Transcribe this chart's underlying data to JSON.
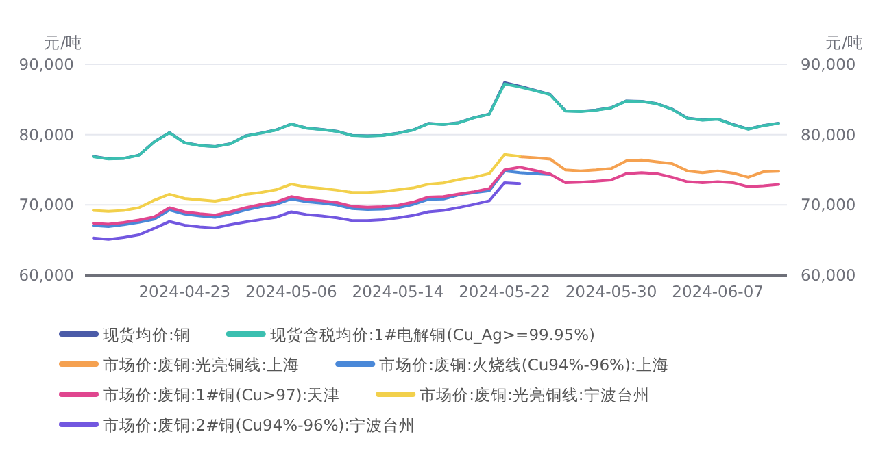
{
  "chart_data": {
    "type": "line",
    "ylabel": "元/吨",
    "y2label": "元/吨",
    "categories": [
      null,
      null,
      null,
      null,
      null,
      null,
      "2024-04-23",
      null,
      null,
      null,
      null,
      null,
      null,
      "2024-05-06",
      null,
      null,
      null,
      null,
      null,
      null,
      "2024-05-14",
      null,
      null,
      null,
      null,
      null,
      null,
      "2024-05-22",
      null,
      null,
      null,
      null,
      null,
      null,
      "2024-05-30",
      null,
      null,
      null,
      null,
      null,
      null,
      "2024-06-07",
      null,
      null,
      null,
      null
    ],
    "ylim": [
      60000,
      90000
    ],
    "yticks": [
      {
        "value": 60000,
        "label": "60,000"
      },
      {
        "value": 70000,
        "label": "70,000"
      },
      {
        "value": 80000,
        "label": "80,000"
      },
      {
        "value": 90000,
        "label": "90,000"
      }
    ],
    "y2lim": [
      60000,
      90000
    ],
    "y2ticks": [
      {
        "value": 60000,
        "label": "60,000"
      },
      {
        "value": 70000,
        "label": "70,000"
      },
      {
        "value": 80000,
        "label": "80,000"
      },
      {
        "value": 90000,
        "label": "90,000"
      }
    ],
    "grid": "y",
    "legend": "bottom",
    "series": [
      {
        "name": "现货均价:铜",
        "color": "#4b5ba8",
        "values": [
          76900,
          76550,
          76620,
          77080,
          78970,
          80300,
          78850,
          78450,
          78320,
          78710,
          79820,
          80220,
          80670,
          81520,
          80940,
          80740,
          80480,
          79890,
          79820,
          79890,
          80220,
          80670,
          81590,
          81460,
          81700,
          82410,
          82920,
          87400,
          86900,
          86300,
          85720,
          83380,
          83320,
          83500,
          83830,
          84800,
          84740,
          84420,
          83640,
          82350,
          82090,
          82220,
          81450,
          80800,
          81310,
          81630
        ]
      },
      {
        "name": "现货含税均价:1#电解铜(Cu_Ag>=99.95%)",
        "color": "#3bbfb0",
        "values": [
          76860,
          76530,
          76600,
          77060,
          78950,
          80270,
          78820,
          78430,
          78300,
          78690,
          79800,
          80200,
          80650,
          81500,
          80920,
          80720,
          80460,
          79870,
          79800,
          79870,
          80200,
          80650,
          81570,
          81440,
          81680,
          82390,
          82900,
          87220,
          86770,
          86260,
          85680,
          83350,
          83290,
          83480,
          83800,
          84770,
          84710,
          84390,
          83610,
          82320,
          82060,
          82190,
          81420,
          80770,
          81290,
          81610
        ]
      },
      {
        "name": "市场价:废铜:光亮铜线:上海",
        "color": "#f5a150",
        "values": [
          null,
          null,
          null,
          null,
          null,
          null,
          null,
          null,
          null,
          null,
          null,
          null,
          null,
          null,
          null,
          null,
          null,
          null,
          null,
          null,
          null,
          null,
          null,
          null,
          null,
          null,
          null,
          null,
          76840,
          76710,
          76520,
          74970,
          74840,
          74970,
          75160,
          76260,
          76390,
          76130,
          75870,
          74840,
          74580,
          74840,
          74520,
          73940,
          74710,
          74770
        ]
      },
      {
        "name": "市场价:废铜:火烧线(Cu94%-96%):上海",
        "color": "#4a88d8",
        "values": [
          67050,
          66920,
          67180,
          67510,
          67960,
          69270,
          68680,
          68420,
          68230,
          68680,
          69270,
          69730,
          70060,
          70840,
          70450,
          70250,
          69990,
          69470,
          69340,
          69400,
          69600,
          70060,
          70780,
          70840,
          71420,
          71740,
          72000,
          74840,
          74580,
          74450,
          74320,
          null,
          null,
          null,
          null,
          null,
          null,
          null,
          null,
          null,
          null,
          null,
          null,
          null,
          null,
          null
        ]
      },
      {
        "name": "市场价:废铜:1#铜(Cu>97):天津",
        "color": "#e0468f",
        "values": [
          67380,
          67250,
          67510,
          67840,
          68290,
          69600,
          69010,
          68750,
          68560,
          69010,
          69600,
          70060,
          70390,
          71170,
          70780,
          70580,
          70320,
          69800,
          69670,
          69730,
          69930,
          70390,
          71110,
          71170,
          71550,
          71870,
          72330,
          74970,
          75360,
          74900,
          74390,
          73160,
          73230,
          73360,
          73550,
          74450,
          74580,
          74450,
          73940,
          73290,
          73160,
          73290,
          73160,
          72580,
          72710,
          72900
        ]
      },
      {
        "name": "市场价:废铜:光亮铜线:宁波台州",
        "color": "#f2d04b",
        "values": [
          69210,
          69080,
          69210,
          69600,
          70650,
          71500,
          70910,
          70710,
          70520,
          70910,
          71500,
          71760,
          72150,
          72940,
          72540,
          72350,
          72090,
          71760,
          71760,
          71890,
          72150,
          72410,
          72940,
          73130,
          73610,
          73940,
          74450,
          77160,
          76900,
          null,
          null,
          null,
          null,
          null,
          null,
          null,
          null,
          null,
          null,
          null,
          null,
          null,
          null,
          null,
          null,
          null
        ]
      },
      {
        "name": "市场价:废铜:2#铜(Cu94%-96%):宁波台州",
        "color": "#7257e0",
        "values": [
          65290,
          65090,
          65350,
          65740,
          66660,
          67640,
          67120,
          66860,
          66720,
          67180,
          67570,
          67900,
          68230,
          69010,
          68620,
          68420,
          68160,
          67770,
          67770,
          67900,
          68160,
          68490,
          69010,
          69210,
          69610,
          70070,
          70580,
          73160,
          73030,
          null,
          null,
          null,
          null,
          null,
          null,
          null,
          null,
          null,
          null,
          null,
          null,
          null,
          null,
          null,
          null,
          null
        ]
      }
    ]
  }
}
